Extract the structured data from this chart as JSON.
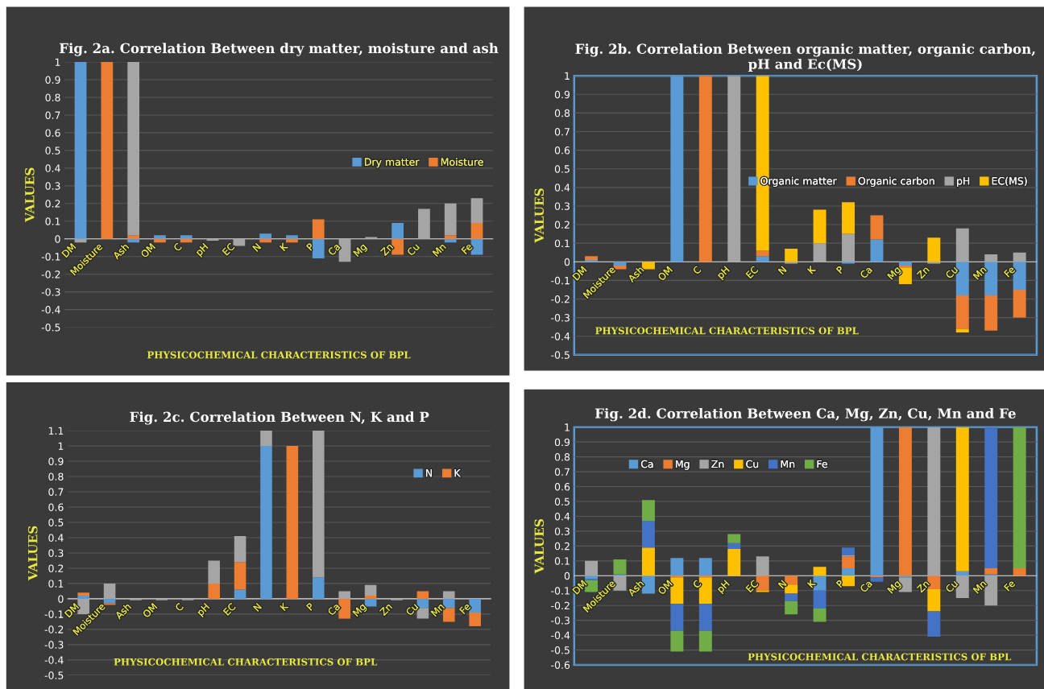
{
  "chart_data": [
    {
      "type": "bar",
      "title": "Fig. 2a. Correlation Between dry matter, moisture and ash",
      "xlabel": "PHYSICOCHEMICAL CHARACTERISTICS OF BPL",
      "ylabel": "VALUES",
      "categories": [
        "DM",
        "Moisture",
        "Ash",
        "OM",
        "C",
        "pH",
        "EC",
        "N",
        "K",
        "P",
        "Ca",
        "Mg",
        "Zn",
        "Cu",
        "Mn",
        "Fe"
      ],
      "stacked": true,
      "ylim": [
        -0.5,
        1
      ],
      "yticks": [
        -0.5,
        -0.4,
        -0.3,
        -0.2,
        -0.1,
        0,
        0.1,
        0.2,
        0.3,
        0.4,
        0.5,
        0.6,
        0.7,
        0.8,
        0.9,
        1
      ],
      "grid": "y",
      "legend": "right",
      "series": [
        {
          "name": "Dry matter",
          "color": "#5b9bd5",
          "values": [
            1,
            0,
            -0.02,
            0.02,
            0.02,
            0,
            0,
            0.03,
            0.02,
            -0.11,
            0,
            0,
            0.09,
            0,
            -0.02,
            -0.09
          ]
        },
        {
          "name": "Moisture",
          "color": "#ed7d31",
          "values": [
            0,
            1,
            0.02,
            -0.02,
            -0.02,
            0,
            0,
            -0.02,
            -0.02,
            0.11,
            0,
            0,
            -0.09,
            0,
            0.02,
            0.09
          ]
        },
        {
          "color": "#a5a5a5",
          "values": [
            -0.02,
            0,
            0.98,
            0,
            0,
            -0.01,
            -0.04,
            0,
            0,
            0,
            -0.13,
            0.01,
            0,
            0.17,
            0.18,
            0.14
          ]
        }
      ]
    },
    {
      "type": "bar",
      "title": "Fig. 2b. Correlation Between organic matter, organic carbon, pH and Ec(MS)",
      "xlabel": "PHYSICOCHEMICAL CHARACTERISTICS OF BPL",
      "ylabel": "VALUES",
      "categories": [
        "DM",
        "Moisture",
        "Ash",
        "OM",
        "C",
        "pH",
        "EC",
        "N",
        "K",
        "P",
        "Ca",
        "Mg",
        "Zn",
        "Cu",
        "Mn",
        "Fe"
      ],
      "stacked": true,
      "ylim": [
        -0.5,
        1
      ],
      "yticks": [
        -0.5,
        -0.4,
        -0.3,
        -0.2,
        -0.1,
        0,
        0.1,
        0.2,
        0.3,
        0.4,
        0.5,
        0.6,
        0.7,
        0.8,
        0.9,
        1
      ],
      "grid": "y",
      "legend": "right",
      "series": [
        {
          "name": "Organic matter",
          "color": "#5b9bd5",
          "values": [
            0.01,
            -0.02,
            0,
            1,
            0,
            0,
            0.03,
            0,
            0,
            -0.01,
            0.12,
            -0.02,
            0,
            -0.18,
            -0.18,
            -0.15
          ]
        },
        {
          "name": "Organic carbon",
          "color": "#ed7d31",
          "values": [
            0.02,
            -0.02,
            0,
            0,
            1,
            0,
            0.03,
            0,
            0,
            0,
            0.13,
            -0.01,
            0,
            -0.18,
            -0.19,
            -0.15
          ]
        },
        {
          "name": "pH",
          "color": "#a5a5a5",
          "values": [
            0,
            0,
            0,
            0,
            0,
            1,
            0,
            -0.01,
            0.1,
            0.15,
            0,
            0,
            -0.01,
            0.18,
            0.04,
            0.05
          ]
        },
        {
          "name": "EC(MS)",
          "color": "#ffc000",
          "values": [
            0,
            0,
            -0.04,
            0,
            0,
            0,
            0.94,
            0.07,
            0.18,
            0.17,
            0,
            -0.09,
            0.13,
            -0.02,
            0,
            0
          ]
        }
      ]
    },
    {
      "type": "bar",
      "title": "Fig. 2c. Correlation Between N, K and P",
      "xlabel": "PHYSICOCHEMICAL CHARACTERISTICS OF BPL",
      "ylabel": "VALUES",
      "categories": [
        "DM",
        "Moisture",
        "Ash",
        "OM",
        "C",
        "pH",
        "EC",
        "N",
        "K",
        "P",
        "Ca",
        "Mg",
        "Zn",
        "Cu",
        "Mn",
        "Fe"
      ],
      "stacked": true,
      "ylim": [
        -0.5,
        1.1
      ],
      "yticks": [
        -0.5,
        -0.4,
        -0.3,
        -0.2,
        -0.1,
        0,
        0.1,
        0.2,
        0.3,
        0.4,
        0.5,
        0.6,
        0.7,
        0.8,
        0.9,
        1,
        1.1
      ],
      "grid": "y",
      "legend": "top right",
      "series": [
        {
          "name": "N",
          "color": "#5b9bd5",
          "values": [
            0.02,
            -0.03,
            0,
            0,
            0,
            0,
            0.06,
            1,
            0,
            0.14,
            0,
            -0.05,
            0,
            -0.06,
            -0.06,
            -0.09
          ]
        },
        {
          "name": "K",
          "color": "#ed7d31",
          "values": [
            0.02,
            -0.01,
            0,
            0,
            0,
            0.1,
            0.18,
            0,
            1,
            0,
            -0.13,
            0.02,
            0,
            0.05,
            -0.09,
            -0.09
          ]
        },
        {
          "color": "#a5a5a5",
          "values": [
            -0.1,
            0.1,
            -0.01,
            -0.01,
            -0.01,
            0.15,
            0.17,
            0.1,
            0,
            0.96,
            0.05,
            0.07,
            -0.01,
            -0.07,
            0.05,
            0
          ]
        }
      ]
    },
    {
      "type": "bar",
      "title": "Fig. 2d. Correlation Between Ca, Mg, Zn, Cu, Mn and Fe",
      "xlabel": "PHYSICOCHEMICAL CHARACTERISTICS OF BPL",
      "ylabel": "VALUES",
      "categories": [
        "DM",
        "Moisture",
        "Ash",
        "OM",
        "C",
        "pH",
        "EC",
        "N",
        "K",
        "P",
        "Ca",
        "Mg",
        "Zn",
        "Cu",
        "Mn",
        "Fe"
      ],
      "stacked": true,
      "ylim": [
        -0.6,
        1
      ],
      "yticks": [
        -0.6,
        -0.5,
        -0.4,
        -0.3,
        -0.2,
        -0.1,
        0,
        0.1,
        0.2,
        0.3,
        0.4,
        0.5,
        0.6,
        0.7,
        0.8,
        0.9,
        1
      ],
      "grid": "y",
      "legend": "top left",
      "series": [
        {
          "name": "Ca",
          "color": "#5b9bd5",
          "values": [
            -0.02,
            0.01,
            -0.12,
            0.12,
            0.12,
            0,
            0,
            0,
            -0.1,
            0.05,
            1,
            -0.01,
            0,
            0.03,
            0.01,
            0
          ]
        },
        {
          "name": "Mg",
          "color": "#ed7d31",
          "values": [
            0,
            0,
            0,
            -0.01,
            -0.01,
            0,
            -0.1,
            -0.06,
            0,
            0.08,
            -0.01,
            1,
            -0.09,
            0,
            0.04,
            0.05
          ]
        },
        {
          "name": "Zn",
          "color": "#a5a5a5",
          "values": [
            0.1,
            -0.1,
            0,
            0,
            0,
            0,
            0.13,
            0,
            0,
            0.01,
            0,
            -0.1,
            1,
            -0.15,
            -0.2,
            0
          ]
        },
        {
          "name": "Cu",
          "color": "#ffc000",
          "values": [
            0,
            0,
            0.19,
            -0.18,
            -0.18,
            0.18,
            -0.01,
            -0.06,
            0.06,
            -0.07,
            0,
            0,
            -0.15,
            0.97,
            0,
            0
          ]
        },
        {
          "name": "Mn",
          "color": "#4472c4",
          "values": [
            -0.01,
            0,
            0.18,
            -0.18,
            -0.18,
            0.04,
            0,
            -0.05,
            -0.12,
            0.05,
            -0.03,
            0,
            -0.17,
            0,
            0.95,
            0
          ]
        },
        {
          "name": "Fe",
          "color": "#70ad47",
          "values": [
            -0.08,
            0.1,
            0.14,
            -0.14,
            -0.14,
            0.06,
            0,
            -0.09,
            -0.09,
            0,
            0,
            0,
            0,
            0,
            0,
            0.95
          ]
        }
      ]
    }
  ]
}
